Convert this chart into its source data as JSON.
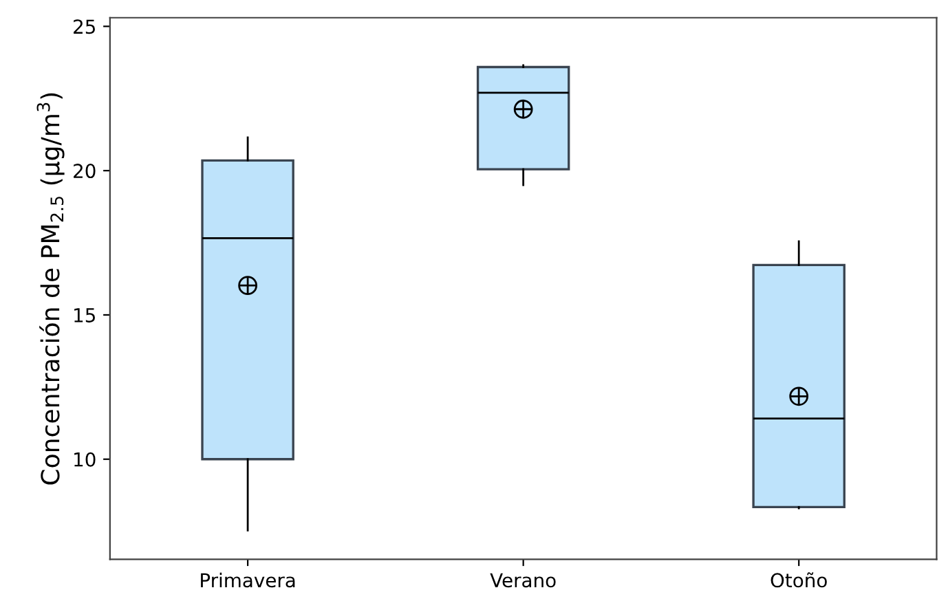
{
  "chart_data": {
    "type": "box",
    "ylabel": "Concentración de PM$_{2.5}$ (µg/m$^{3}$)",
    "categories": [
      "Primavera",
      "Verano",
      "Otoño"
    ],
    "color": "#bee3fb",
    "boxes": [
      {
        "low": 7.53,
        "q1": 10.0,
        "median": 17.66,
        "q3": 20.35,
        "high": 21.15,
        "mean": 16.02
      },
      {
        "low": 19.5,
        "q1": 20.05,
        "median": 22.7,
        "q3": 23.59,
        "high": 23.65,
        "mean": 22.13
      },
      {
        "low": 8.3,
        "q1": 8.34,
        "median": 11.41,
        "q3": 16.73,
        "high": 17.55,
        "mean": 12.18
      }
    ],
    "ylim": [
      6.53,
      25.3
    ],
    "yticks": [
      10,
      15,
      20,
      25
    ],
    "grid": false
  }
}
